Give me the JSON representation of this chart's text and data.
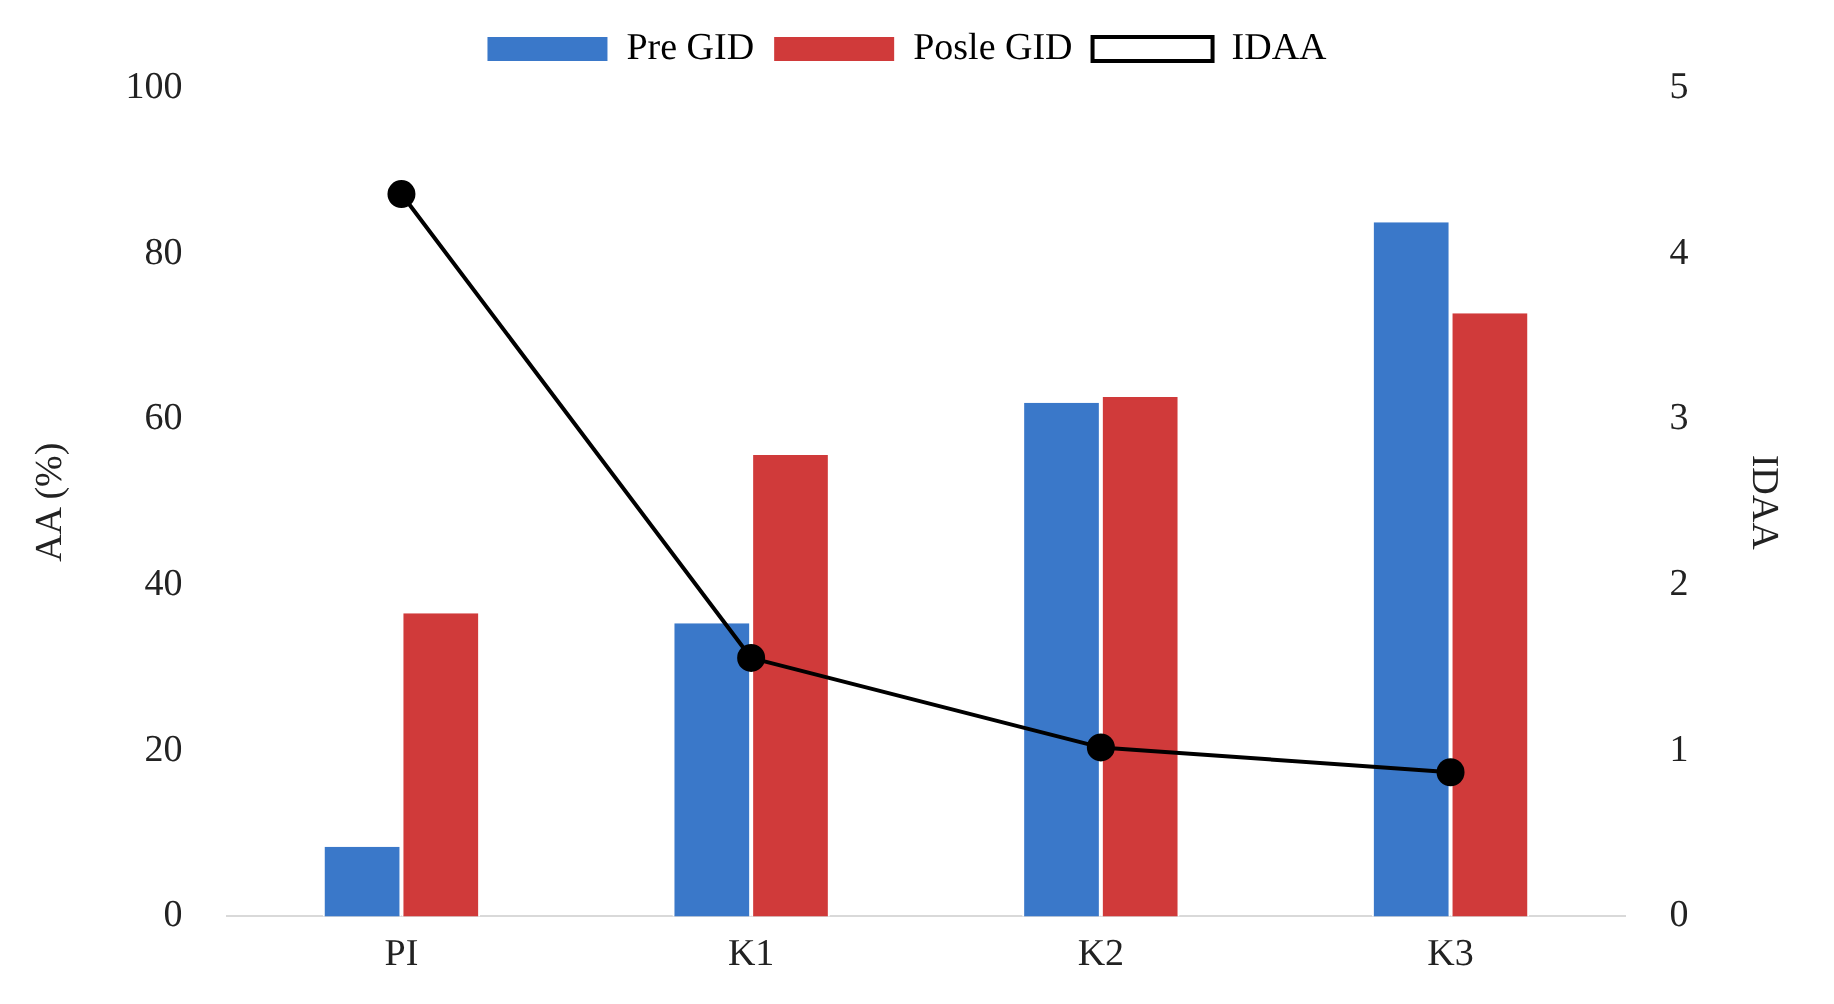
{
  "chart_data": {
    "type": "bar",
    "ylabel": "AA (%)",
    "y2label": "IDAA",
    "categories": [
      "PI",
      "K1",
      "K2",
      "K3"
    ],
    "series": [
      {
        "name": "Pre GID",
        "color": "#3a78c9",
        "values": [
          8.4,
          35.4,
          62.0,
          83.8
        ]
      },
      {
        "name": "Posle GID",
        "color": "#d03a3a",
        "values": [
          36.6,
          55.7,
          62.7,
          72.8
        ]
      },
      {
        "name": "IDAA",
        "type": "line",
        "axis": "y2",
        "color": "#000000",
        "marker": "circle",
        "values": [
          4.36,
          1.56,
          1.02,
          0.87
        ]
      }
    ],
    "ylim": [
      0,
      100
    ],
    "yticks": [
      0,
      20,
      40,
      60,
      80,
      100
    ],
    "y2lim": [
      0,
      5
    ],
    "y2ticks": [
      0,
      1,
      2,
      3,
      4,
      5
    ],
    "grid": false,
    "legend": "top"
  }
}
